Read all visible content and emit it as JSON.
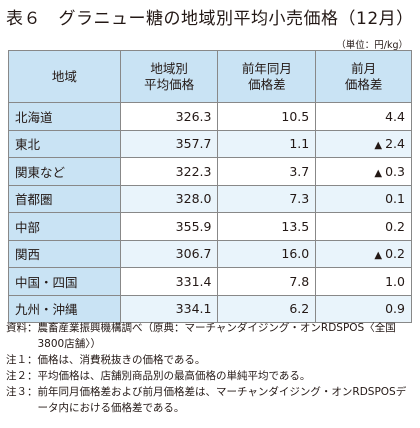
{
  "title": "表６　グラニュー糖の地域別平均小売価格（12月）",
  "unit": "（単位：円/kg）",
  "table": {
    "headers": {
      "region": "地域",
      "avg_line1": "地域別",
      "avg_line2": "平均価格",
      "yoy_line1": "前年同月",
      "yoy_line2": "価格差",
      "mom_line1": "前月",
      "mom_line2": "価格差"
    },
    "rows": [
      {
        "region": "北海道",
        "avg": "326.3",
        "yoy": "10.5",
        "mom": "4.4",
        "mom_neg": false
      },
      {
        "region": "東北",
        "avg": "357.7",
        "yoy": "1.1",
        "mom": "2.4",
        "mom_neg": true
      },
      {
        "region": "関東など",
        "avg": "322.3",
        "yoy": "3.7",
        "mom": "0.3",
        "mom_neg": true
      },
      {
        "region": "首都圏",
        "avg": "328.0",
        "yoy": "7.3",
        "mom": "0.1",
        "mom_neg": false
      },
      {
        "region": "中部",
        "avg": "355.9",
        "yoy": "13.5",
        "mom": "0.2",
        "mom_neg": false
      },
      {
        "region": "関西",
        "avg": "306.7",
        "yoy": "16.0",
        "mom": "0.2",
        "mom_neg": true
      },
      {
        "region": "中国・四国",
        "avg": "331.4",
        "yoy": "7.8",
        "mom": "1.0",
        "mom_neg": false
      },
      {
        "region": "九州・沖縄",
        "avg": "334.1",
        "yoy": "6.2",
        "mom": "0.9",
        "mom_neg": false
      }
    ],
    "negative_marker": "▲"
  },
  "notes": {
    "source_label": "資料：",
    "source_text": "農畜産業振興機構調べ（原典：マーチャンダイジング・オンRDSPOS〈全国3800店舗〉）",
    "note1_label": "注１：",
    "note1_text": "価格は、消費税抜きの価格である。",
    "note2_label": "注２：",
    "note2_text": "平均価格は、店舗別商品別の最高価格の単純平均である。",
    "note3_label": "注３：",
    "note3_text": "前年同月価格差および前月価格差は、マーチャンダイジング・オンRDSPOSデータ内における価格差である。"
  }
}
